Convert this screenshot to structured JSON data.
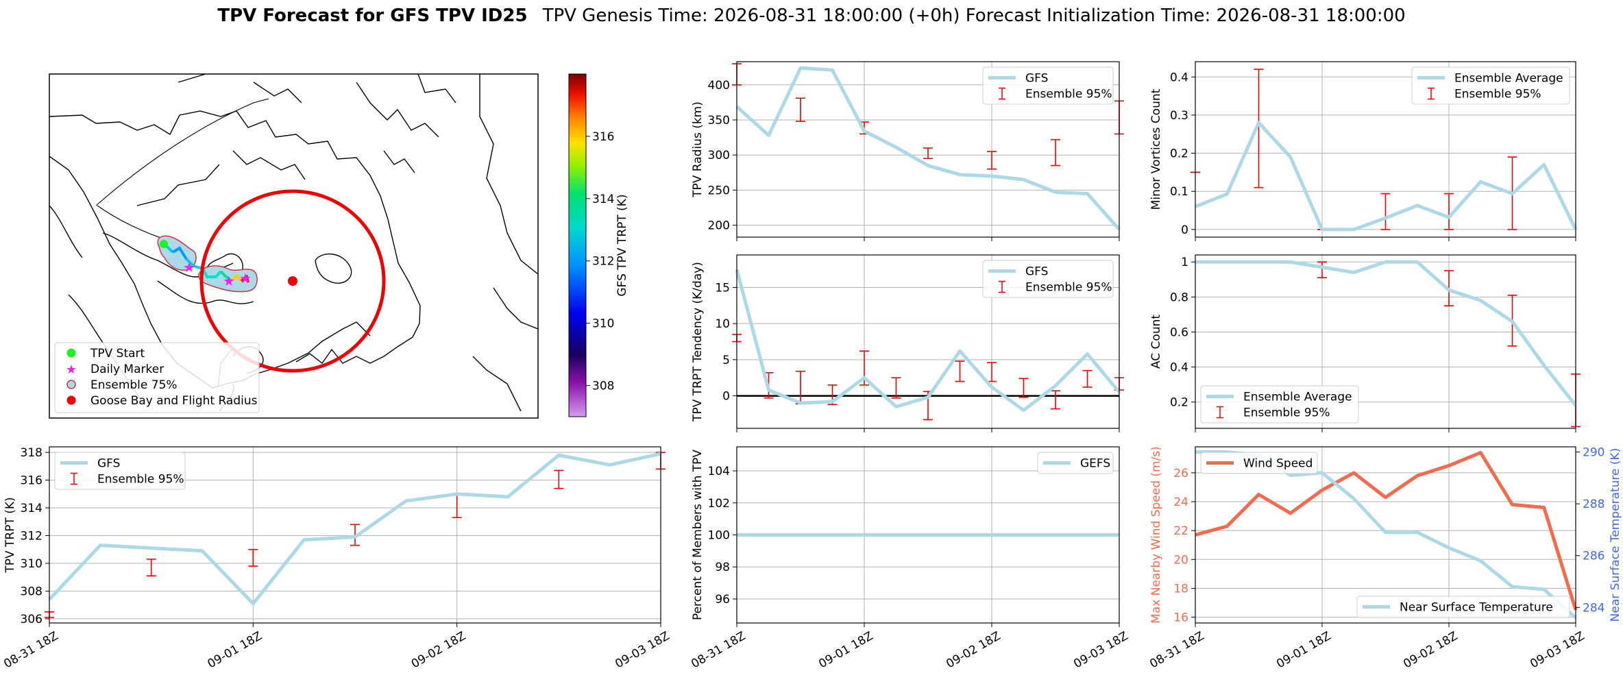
{
  "figure": {
    "title_bold": "TPV Forecast for GFS TPV ID25",
    "title_rest": "TPV Genesis Time: 2026-08-31 18:00:00 (+0h)   Forecast Initialization Time: 2026-08-31 18:00:00"
  },
  "map": {
    "colorbar_label": "GFS TPV TRPT (K)",
    "colorbar_ticks": [
      308,
      310,
      312,
      314,
      316
    ],
    "colorbar_range": [
      307.0,
      318.0
    ],
    "legend": [
      "TPV Start",
      "Daily Marker",
      "Ensemble 75%",
      "Goose Bay and Flight Radius"
    ],
    "colors": {
      "start": "#22ee22",
      "daily": "#ee22ee",
      "ensemble_fill": "#add8e6",
      "ensemble_edge": "#cc3344",
      "goose": "#ee0000"
    }
  },
  "chart_data": [
    {
      "id": "radius",
      "type": "line",
      "ylabel": "TPV Radius (km)",
      "ylim": [
        183,
        433
      ],
      "yticks": [
        200,
        250,
        300,
        350,
        400
      ],
      "x": [
        0,
        0.25,
        0.5,
        0.75,
        1,
        1.25,
        1.5,
        1.75,
        2,
        2.25,
        2.5,
        2.75,
        3
      ],
      "series": [
        {
          "name": "GFS",
          "values": [
            369,
            328,
            424,
            421,
            334,
            311,
            285,
            272,
            270,
            265,
            247,
            245,
            194
          ]
        }
      ],
      "errorbars": {
        "name": "Ensemble 95%",
        "points": [
          {
            "x": 0,
            "lo": 400,
            "hi": 430
          },
          {
            "x": 0.5,
            "lo": 348,
            "hi": 381
          },
          {
            "x": 1,
            "lo": 330,
            "hi": 347
          },
          {
            "x": 1.5,
            "lo": 295,
            "hi": 310
          },
          {
            "x": 2,
            "lo": 280,
            "hi": 305
          },
          {
            "x": 2.5,
            "lo": 285,
            "hi": 322
          },
          {
            "x": 3,
            "lo": 330,
            "hi": 377
          }
        ]
      },
      "legend": "top-right"
    },
    {
      "id": "tendency",
      "type": "line",
      "ylabel": "TPV TRPT Tendency (K/day)",
      "ylim": [
        -4.5,
        19.5
      ],
      "yticks": [
        0,
        5,
        10,
        15
      ],
      "x": [
        0,
        0.25,
        0.5,
        0.75,
        1,
        1.25,
        1.5,
        1.75,
        2,
        2.25,
        2.5,
        2.75,
        3
      ],
      "series": [
        {
          "name": "GFS",
          "values": [
            17.5,
            0.8,
            -1.0,
            -0.8,
            2.5,
            -1.5,
            -0.2,
            6.2,
            1.2,
            -2.0,
            1.4,
            5.8,
            0.5
          ]
        }
      ],
      "errorbars": {
        "name": "Ensemble 95%",
        "points": [
          {
            "x": 0,
            "lo": 7.5,
            "hi": 8.5
          },
          {
            "x": 0.25,
            "lo": -0.3,
            "hi": 3.2
          },
          {
            "x": 0.5,
            "lo": -1.1,
            "hi": 3.4
          },
          {
            "x": 0.75,
            "lo": -1.2,
            "hi": 1.5
          },
          {
            "x": 1,
            "lo": 1.5,
            "hi": 6.2
          },
          {
            "x": 1.25,
            "lo": -0.3,
            "hi": 2.5
          },
          {
            "x": 1.5,
            "lo": -3.3,
            "hi": 0.6
          },
          {
            "x": 1.75,
            "lo": 2.0,
            "hi": 4.8
          },
          {
            "x": 2,
            "lo": 2.0,
            "hi": 4.6
          },
          {
            "x": 2.25,
            "lo": -0.2,
            "hi": 2.4
          },
          {
            "x": 2.5,
            "lo": -1.8,
            "hi": 0.7
          },
          {
            "x": 2.75,
            "lo": 1.2,
            "hi": 3.5
          },
          {
            "x": 3,
            "lo": 0.8,
            "hi": 2.5
          }
        ]
      },
      "hline": 0,
      "legend": "top-right"
    },
    {
      "id": "percent",
      "type": "line",
      "ylabel": "Percent of Members with TPV",
      "ylim": [
        94.5,
        105.5
      ],
      "yticks": [
        96,
        98,
        100,
        102,
        104
      ],
      "x": [
        0,
        3
      ],
      "series": [
        {
          "name": "GEFS",
          "values": [
            100,
            100
          ]
        }
      ],
      "legend": "top-right"
    },
    {
      "id": "minor",
      "type": "line",
      "ylabel": "Minor Vortices Count",
      "ylim": [
        -0.02,
        0.44
      ],
      "yticks": [
        0.0,
        0.1,
        0.2,
        0.3,
        0.4
      ],
      "x": [
        0,
        0.25,
        0.5,
        0.75,
        1,
        1.25,
        1.5,
        1.75,
        2,
        2.25,
        2.5,
        2.75,
        3
      ],
      "series": [
        {
          "name": "Ensemble Average",
          "values": [
            0.06,
            0.093,
            0.28,
            0.19,
            0.0,
            0.0,
            0.03,
            0.063,
            0.032,
            0.125,
            0.094,
            0.17,
            0.0
          ]
        }
      ],
      "errorbars": {
        "name": "Ensemble 95%",
        "points": [
          {
            "x": 0,
            "lo": 0.15,
            "hi": 0.15
          },
          {
            "x": 0.5,
            "lo": 0.11,
            "hi": 0.42
          },
          {
            "x": 1,
            "lo": 0.0,
            "hi": 0.0
          },
          {
            "x": 1.5,
            "lo": 0.0,
            "hi": 0.094
          },
          {
            "x": 2,
            "lo": 0.0,
            "hi": 0.094
          },
          {
            "x": 2.5,
            "lo": 0.0,
            "hi": 0.19
          }
        ]
      },
      "legend": "top-right"
    },
    {
      "id": "ac",
      "type": "line",
      "ylabel": "AC Count",
      "ylim": [
        0.05,
        1.04
      ],
      "yticks": [
        0.2,
        0.4,
        0.6,
        0.8,
        1.0
      ],
      "x": [
        0,
        0.25,
        0.5,
        0.75,
        1,
        1.25,
        1.5,
        1.75,
        2,
        2.25,
        2.5,
        2.75,
        3
      ],
      "series": [
        {
          "name": "Ensemble Average",
          "values": [
            1.0,
            1.0,
            1.0,
            1.0,
            0.97,
            0.94,
            1.0,
            1.0,
            0.84,
            0.78,
            0.66,
            0.41,
            0.18
          ]
        }
      ],
      "errorbars": {
        "name": "Ensemble 95%",
        "points": [
          {
            "x": 0.5,
            "lo": 1.0,
            "hi": 1.0
          },
          {
            "x": 1,
            "lo": 0.91,
            "hi": 1.0
          },
          {
            "x": 1.5,
            "lo": 1.0,
            "hi": 1.0
          },
          {
            "x": 2,
            "lo": 0.75,
            "hi": 0.95
          },
          {
            "x": 2.5,
            "lo": 0.52,
            "hi": 0.81
          },
          {
            "x": 3,
            "lo": 0.06,
            "hi": 0.36
          }
        ]
      },
      "legend": "bottom-left"
    },
    {
      "id": "trpt",
      "type": "line",
      "ylabel": "TPV TRPT (K)",
      "ylim": [
        305.7,
        318.4
      ],
      "yticks": [
        306,
        308,
        310,
        312,
        314,
        316,
        318
      ],
      "x": [
        0,
        0.25,
        0.5,
        0.75,
        1,
        1.25,
        1.5,
        1.75,
        2,
        2.25,
        2.5,
        2.75,
        3
      ],
      "series": [
        {
          "name": "GFS",
          "values": [
            307.4,
            311.3,
            311.1,
            310.9,
            307.1,
            311.7,
            311.9,
            314.5,
            315.0,
            314.8,
            317.8,
            317.1,
            317.9
          ]
        }
      ],
      "errorbars": {
        "name": "Ensemble 95%",
        "points": [
          {
            "x": 0,
            "lo": 306.1,
            "hi": 306.5
          },
          {
            "x": 0.5,
            "lo": 309.1,
            "hi": 310.3
          },
          {
            "x": 1,
            "lo": 309.8,
            "hi": 311.0
          },
          {
            "x": 1.5,
            "lo": 311.3,
            "hi": 312.8
          },
          {
            "x": 2,
            "lo": 313.3,
            "hi": 315.0
          },
          {
            "x": 2.5,
            "lo": 315.4,
            "hi": 316.7
          },
          {
            "x": 3,
            "lo": 316.8,
            "hi": 318.0
          }
        ]
      },
      "legend": "top-left"
    },
    {
      "id": "wind",
      "type": "line",
      "ylabel": "Max Nearby Wind Speed (m/s)",
      "ylim": [
        15.6,
        27.8
      ],
      "yticks": [
        16,
        18,
        20,
        22,
        24,
        26
      ],
      "y2label": "Near Surface Temperature (K)",
      "y2lim": [
        283.4,
        290.2
      ],
      "y2ticks": [
        284,
        286,
        288,
        290
      ],
      "x": [
        0,
        0.25,
        0.5,
        0.75,
        1,
        1.25,
        1.5,
        1.75,
        2,
        2.25,
        2.5,
        2.75,
        3
      ],
      "series": [
        {
          "name": "Wind Speed",
          "values": [
            21.7,
            22.3,
            24.5,
            23.2,
            24.8,
            26.0,
            24.3,
            25.8,
            26.5,
            27.4,
            23.8,
            23.6,
            16.5
          ]
        },
        {
          "name": "Near Surface Temperature",
          "axis": "right",
          "values": [
            290.0,
            290.0,
            289.9,
            289.1,
            289.2,
            288.2,
            286.9,
            286.9,
            286.3,
            285.8,
            284.8,
            284.7,
            283.6
          ]
        }
      ],
      "legend": "split"
    }
  ],
  "x_axis": {
    "tick_positions": [
      0,
      1,
      2,
      3
    ],
    "tick_labels": [
      "08-31 18Z",
      "09-01 18Z",
      "09-02 18Z",
      "09-03 18Z"
    ]
  },
  "colors": {
    "line": "#add8e6",
    "err": "#ee0000",
    "wind": "#f26b4e",
    "left_axis": "#f26b4e",
    "right_axis": "#4169e1"
  }
}
